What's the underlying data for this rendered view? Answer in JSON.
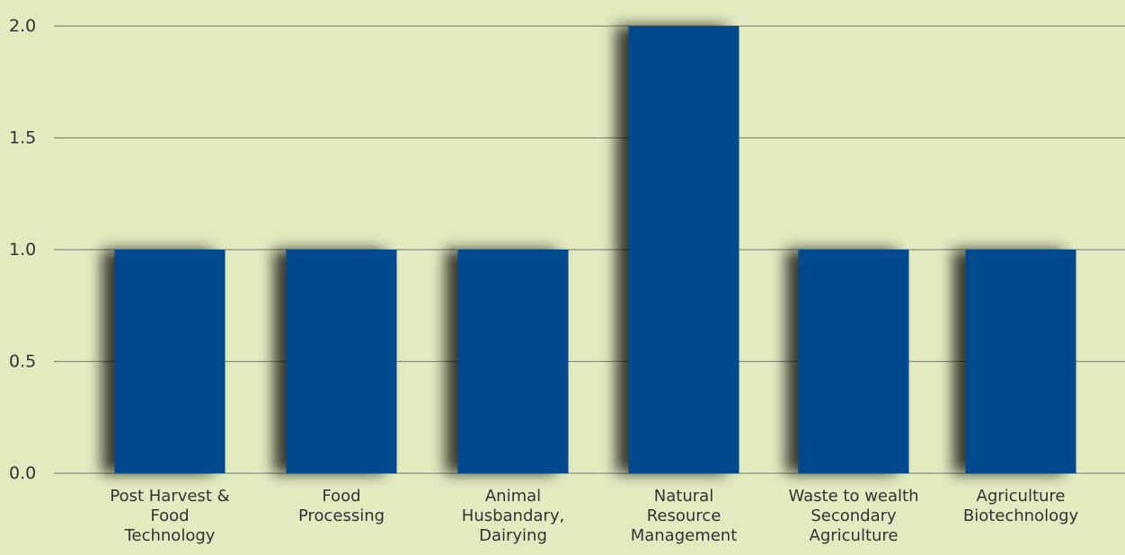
{
  "colors": {
    "background": "#e2eac0",
    "bar": "#014a8d",
    "gridline": "#8a8f7a",
    "text": "#333333"
  },
  "chart_data": {
    "type": "bar",
    "title": "",
    "xlabel": "",
    "ylabel": "",
    "ylim": [
      0,
      2
    ],
    "yticks": [
      0.0,
      0.5,
      1.0,
      1.5,
      2.0
    ],
    "ytick_labels": [
      "0.0",
      "0.5",
      "1.0",
      "1.5",
      "2.0"
    ],
    "grid": true,
    "legend": "none",
    "categories": [
      "Post Harvest & Food Technology",
      "Food Processing",
      "Animal Husbandary, Dairying",
      "Natural Resource Management",
      "Waste to wealth Secondary Agriculture",
      "Agriculture Biotechnology"
    ],
    "category_label_lines": [
      [
        "Post Harvest &",
        "Food",
        "Technology"
      ],
      [
        "Food",
        "Processing"
      ],
      [
        "Animal",
        "Husbandary,",
        "Dairying"
      ],
      [
        "Natural",
        "Resource",
        "Management"
      ],
      [
        "Waste to wealth",
        "Secondary",
        "Agriculture"
      ],
      [
        "Agriculture",
        "Biotechnology"
      ]
    ],
    "values": [
      1,
      1,
      1,
      2,
      1,
      1
    ]
  }
}
